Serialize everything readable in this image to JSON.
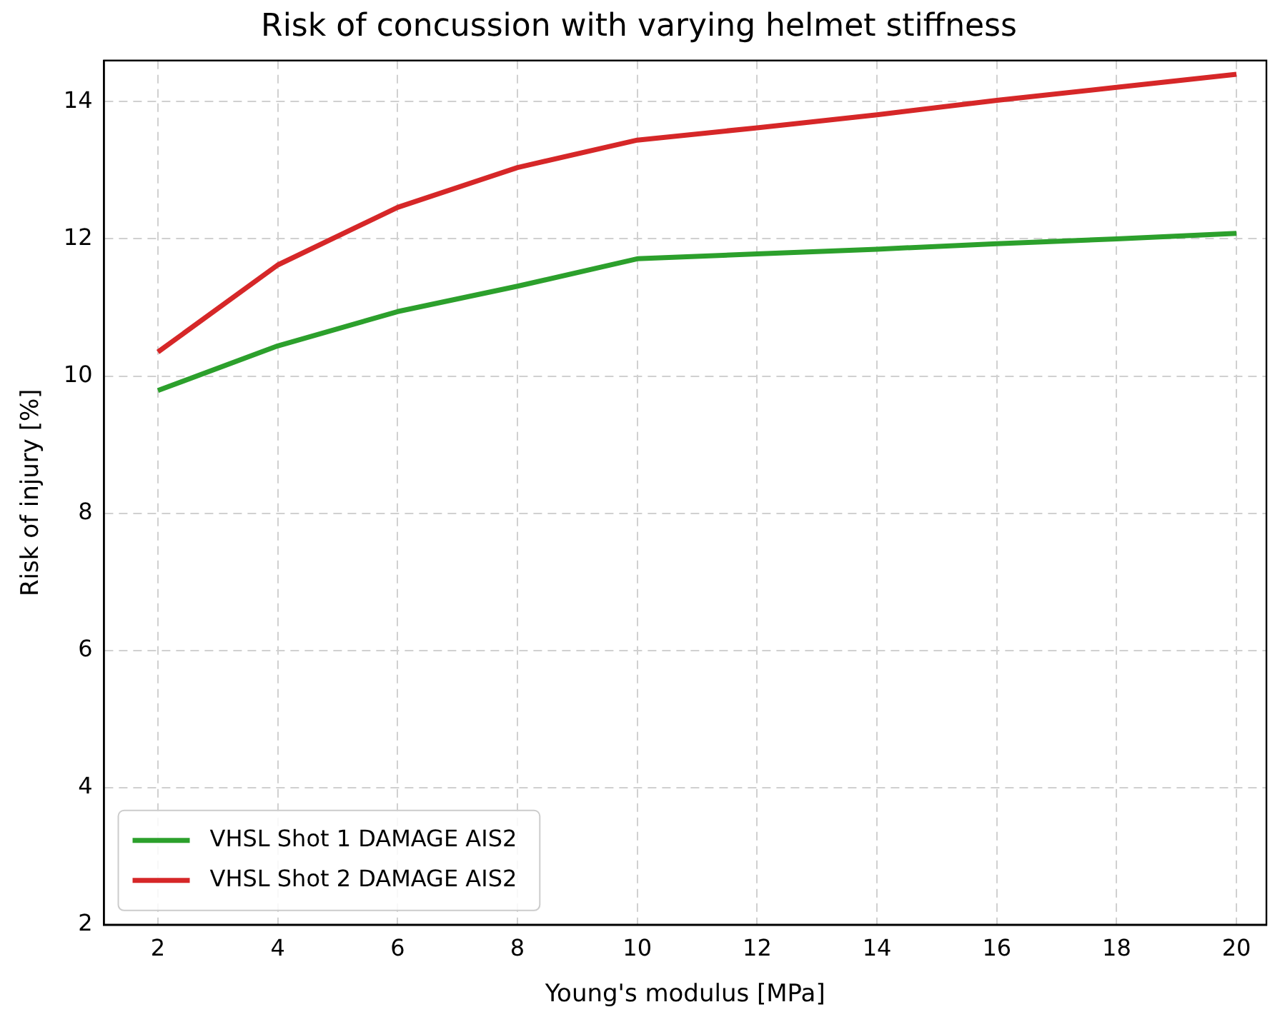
{
  "chart_data": {
    "type": "line",
    "title": "Risk of concussion with varying helmet stiffness",
    "xlabel": "Young's modulus [MPa]",
    "ylabel": "Risk of injury [%]",
    "x": [
      2,
      4,
      6,
      8,
      10,
      12,
      14,
      16,
      18,
      20
    ],
    "series": [
      {
        "name": "VHSL Shot 1 DAMAGE AIS2",
        "color": "#2ca02c",
        "values": [
          9.79,
          10.44,
          10.94,
          11.31,
          11.71,
          11.78,
          11.85,
          11.93,
          12.0,
          12.08
        ]
      },
      {
        "name": "VHSL Shot 2 DAMAGE AIS2",
        "color": "#d62728",
        "values": [
          10.35,
          11.62,
          12.46,
          13.04,
          13.44,
          13.62,
          13.81,
          14.02,
          14.21,
          14.4
        ]
      }
    ],
    "xlim": [
      1.1,
      20.5
    ],
    "xticks": [
      2,
      4,
      6,
      8,
      10,
      12,
      14,
      16,
      18,
      20
    ],
    "ylim": [
      2,
      14.6
    ],
    "yticks": [
      2,
      4,
      6,
      8,
      10,
      12,
      14
    ],
    "grid": true,
    "legend": "bottom left",
    "marker": "none",
    "line_style": "solid"
  }
}
